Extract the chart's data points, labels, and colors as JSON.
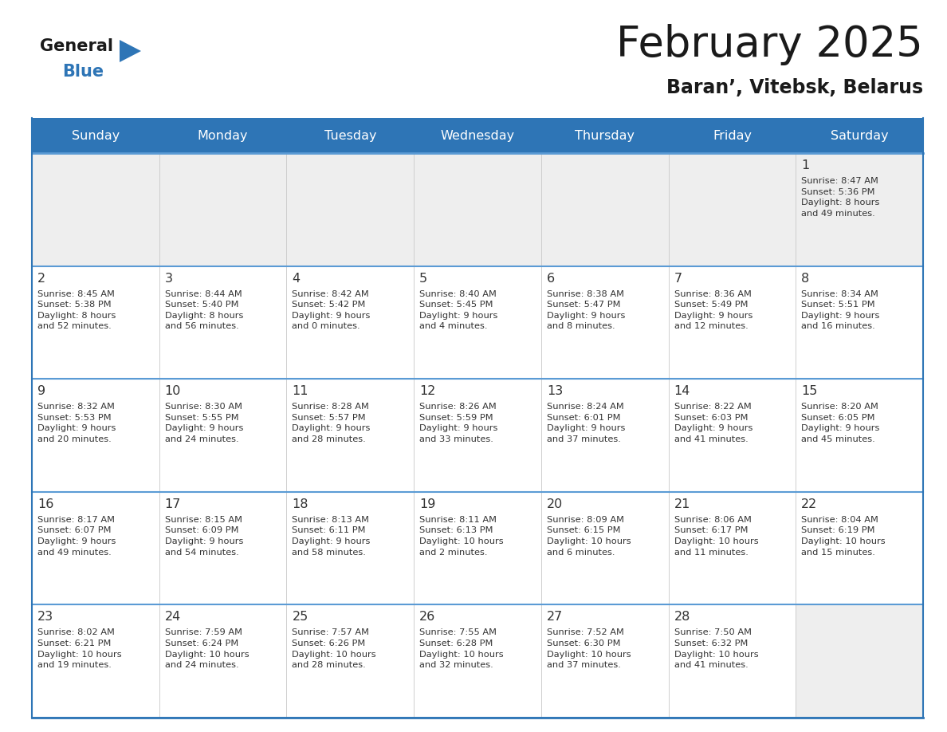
{
  "title": "February 2025",
  "subtitle": "Baran’, Vitebsk, Belarus",
  "days_of_week": [
    "Sunday",
    "Monday",
    "Tuesday",
    "Wednesday",
    "Thursday",
    "Friday",
    "Saturday"
  ],
  "header_bg": "#2E75B6",
  "header_text": "#FFFFFF",
  "cell_bg_light": "#EEEEEE",
  "cell_bg_white": "#FFFFFF",
  "border_color": "#2E75B6",
  "row_line_color": "#5B9BD5",
  "text_color": "#333333",
  "title_color": "#1a1a1a",
  "subtitle_color": "#1a1a1a",
  "logo_general_color": "#1a1a1a",
  "logo_blue_color": "#2E75B6",
  "weeks": [
    [
      {
        "day": null,
        "info": null
      },
      {
        "day": null,
        "info": null
      },
      {
        "day": null,
        "info": null
      },
      {
        "day": null,
        "info": null
      },
      {
        "day": null,
        "info": null
      },
      {
        "day": null,
        "info": null
      },
      {
        "day": 1,
        "info": "Sunrise: 8:47 AM\nSunset: 5:36 PM\nDaylight: 8 hours\nand 49 minutes."
      }
    ],
    [
      {
        "day": 2,
        "info": "Sunrise: 8:45 AM\nSunset: 5:38 PM\nDaylight: 8 hours\nand 52 minutes."
      },
      {
        "day": 3,
        "info": "Sunrise: 8:44 AM\nSunset: 5:40 PM\nDaylight: 8 hours\nand 56 minutes."
      },
      {
        "day": 4,
        "info": "Sunrise: 8:42 AM\nSunset: 5:42 PM\nDaylight: 9 hours\nand 0 minutes."
      },
      {
        "day": 5,
        "info": "Sunrise: 8:40 AM\nSunset: 5:45 PM\nDaylight: 9 hours\nand 4 minutes."
      },
      {
        "day": 6,
        "info": "Sunrise: 8:38 AM\nSunset: 5:47 PM\nDaylight: 9 hours\nand 8 minutes."
      },
      {
        "day": 7,
        "info": "Sunrise: 8:36 AM\nSunset: 5:49 PM\nDaylight: 9 hours\nand 12 minutes."
      },
      {
        "day": 8,
        "info": "Sunrise: 8:34 AM\nSunset: 5:51 PM\nDaylight: 9 hours\nand 16 minutes."
      }
    ],
    [
      {
        "day": 9,
        "info": "Sunrise: 8:32 AM\nSunset: 5:53 PM\nDaylight: 9 hours\nand 20 minutes."
      },
      {
        "day": 10,
        "info": "Sunrise: 8:30 AM\nSunset: 5:55 PM\nDaylight: 9 hours\nand 24 minutes."
      },
      {
        "day": 11,
        "info": "Sunrise: 8:28 AM\nSunset: 5:57 PM\nDaylight: 9 hours\nand 28 minutes."
      },
      {
        "day": 12,
        "info": "Sunrise: 8:26 AM\nSunset: 5:59 PM\nDaylight: 9 hours\nand 33 minutes."
      },
      {
        "day": 13,
        "info": "Sunrise: 8:24 AM\nSunset: 6:01 PM\nDaylight: 9 hours\nand 37 minutes."
      },
      {
        "day": 14,
        "info": "Sunrise: 8:22 AM\nSunset: 6:03 PM\nDaylight: 9 hours\nand 41 minutes."
      },
      {
        "day": 15,
        "info": "Sunrise: 8:20 AM\nSunset: 6:05 PM\nDaylight: 9 hours\nand 45 minutes."
      }
    ],
    [
      {
        "day": 16,
        "info": "Sunrise: 8:17 AM\nSunset: 6:07 PM\nDaylight: 9 hours\nand 49 minutes."
      },
      {
        "day": 17,
        "info": "Sunrise: 8:15 AM\nSunset: 6:09 PM\nDaylight: 9 hours\nand 54 minutes."
      },
      {
        "day": 18,
        "info": "Sunrise: 8:13 AM\nSunset: 6:11 PM\nDaylight: 9 hours\nand 58 minutes."
      },
      {
        "day": 19,
        "info": "Sunrise: 8:11 AM\nSunset: 6:13 PM\nDaylight: 10 hours\nand 2 minutes."
      },
      {
        "day": 20,
        "info": "Sunrise: 8:09 AM\nSunset: 6:15 PM\nDaylight: 10 hours\nand 6 minutes."
      },
      {
        "day": 21,
        "info": "Sunrise: 8:06 AM\nSunset: 6:17 PM\nDaylight: 10 hours\nand 11 minutes."
      },
      {
        "day": 22,
        "info": "Sunrise: 8:04 AM\nSunset: 6:19 PM\nDaylight: 10 hours\nand 15 minutes."
      }
    ],
    [
      {
        "day": 23,
        "info": "Sunrise: 8:02 AM\nSunset: 6:21 PM\nDaylight: 10 hours\nand 19 minutes."
      },
      {
        "day": 24,
        "info": "Sunrise: 7:59 AM\nSunset: 6:24 PM\nDaylight: 10 hours\nand 24 minutes."
      },
      {
        "day": 25,
        "info": "Sunrise: 7:57 AM\nSunset: 6:26 PM\nDaylight: 10 hours\nand 28 minutes."
      },
      {
        "day": 26,
        "info": "Sunrise: 7:55 AM\nSunset: 6:28 PM\nDaylight: 10 hours\nand 32 minutes."
      },
      {
        "day": 27,
        "info": "Sunrise: 7:52 AM\nSunset: 6:30 PM\nDaylight: 10 hours\nand 37 minutes."
      },
      {
        "day": 28,
        "info": "Sunrise: 7:50 AM\nSunset: 6:32 PM\nDaylight: 10 hours\nand 41 minutes."
      },
      {
        "day": null,
        "info": null
      }
    ]
  ]
}
